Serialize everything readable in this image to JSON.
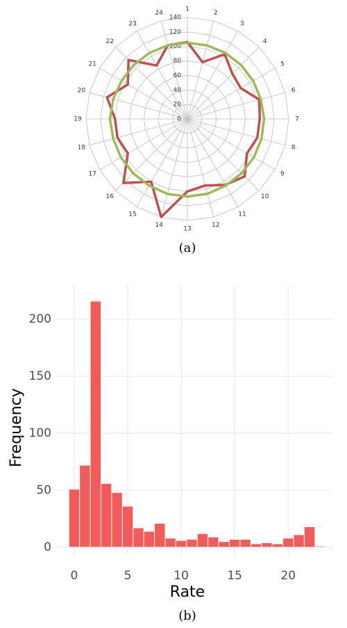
{
  "chart_data": [
    {
      "type": "radar",
      "caption": "(a)",
      "categories": [
        "1",
        "2",
        "3",
        "4",
        "5",
        "6",
        "7",
        "8",
        "9",
        "10",
        "11",
        "12",
        "13",
        "14",
        "15",
        "16",
        "17",
        "18",
        "19",
        "20",
        "21",
        "22",
        "23",
        "24"
      ],
      "ylim": [
        0,
        140
      ],
      "yticks": [
        0,
        20,
        40,
        60,
        80,
        100,
        120,
        140
      ],
      "grid": true,
      "series": [
        {
          "color": "#c0504d",
          "values": [
            106,
            81,
            103,
            88,
            85,
            103,
            100,
            100,
            95,
            112,
            105,
            95,
            100,
            140,
            100,
            125,
            95,
            100,
            100,
            115,
            95,
            115,
            85,
            105
          ]
        },
        {
          "color": "#9bbb59",
          "values": [
            105,
            105,
            105,
            105,
            105,
            105,
            106,
            106,
            106,
            106,
            106,
            107,
            107,
            107,
            106,
            106,
            106,
            106,
            107,
            106,
            105,
            105,
            105,
            105
          ]
        }
      ]
    },
    {
      "type": "histogram",
      "caption": "(b)",
      "xlabel": "Rate",
      "ylabel": "Frequency",
      "color": "#f35b5a",
      "bins": [
        -0.5,
        0.5,
        1.5,
        2.5,
        3.5,
        4.5,
        5.5,
        6.5,
        7.5,
        8.5,
        9.5,
        10.5,
        11.5,
        12.5,
        13.5,
        14.5,
        15.5,
        16.5,
        17.5,
        18.5,
        19.5,
        20.5,
        21.5,
        22.5,
        23.5
      ],
      "values": [
        51,
        72,
        216,
        56,
        48,
        36,
        17,
        14,
        21,
        8,
        6,
        7,
        12,
        9,
        5,
        7,
        7,
        3,
        4,
        3,
        8,
        11,
        18,
        1
      ],
      "xlim": [
        -1.75,
        24.2
      ],
      "ylim": [
        -8,
        230
      ],
      "xticks": [
        0,
        5,
        10,
        15,
        20
      ],
      "yticks": [
        0,
        50,
        100,
        150,
        200
      ],
      "grid": true
    }
  ]
}
